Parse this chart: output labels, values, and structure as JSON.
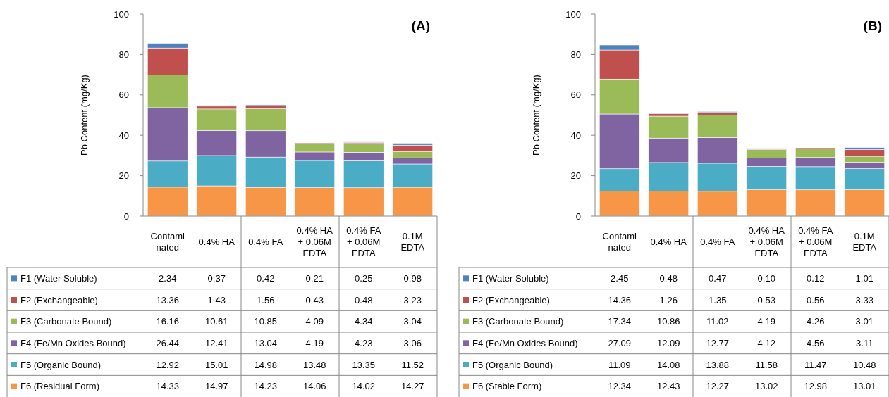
{
  "chart_data": [
    {
      "type": "bar",
      "stacked": true,
      "title": "(A)",
      "ylabel": "Pb Content (mg/Kg)",
      "categories": [
        "Contaminated",
        "0.4% HA",
        "0.4% FA",
        "0.4% HA + 0.06M EDTA",
        "0.4% FA + 0.06M EDTA",
        "0.1M EDTA"
      ],
      "ylim": [
        0,
        100
      ],
      "yticks": [
        0,
        20,
        40,
        60,
        80,
        100
      ],
      "grid": false,
      "legend": "bottom left",
      "series": [
        {
          "name": "F6 (Residual Form)",
          "color": "#f79646",
          "values": [
            14.33,
            14.97,
            14.23,
            14.06,
            14.02,
            14.27
          ],
          "value_labels": [
            "14.33",
            "14.97",
            "14.23",
            "14.06",
            "14.02",
            "14.27"
          ]
        },
        {
          "name": "F5 (Organic Bound)",
          "color": "#4bacc6",
          "values": [
            12.92,
            15.01,
            14.98,
            13.48,
            13.35,
            11.52
          ],
          "value_labels": [
            "12.92",
            "15.01",
            "14.98",
            "13.48",
            "13.35",
            "11.52"
          ]
        },
        {
          "name": "F4 (Fe/Mn Oxides Bound)",
          "color": "#8064a2",
          "values": [
            26.44,
            12.41,
            13.04,
            4.19,
            4.23,
            3.06
          ],
          "value_labels": [
            "26.44",
            "12.41",
            "13.04",
            "4.19",
            "4.23",
            "3.06"
          ]
        },
        {
          "name": "F3 (Carbonate Bound)",
          "color": "#9bbb59",
          "values": [
            16.16,
            10.61,
            10.85,
            4.09,
            4.34,
            3.04
          ],
          "value_labels": [
            "16.16",
            "10.61",
            "10.85",
            "4.09",
            "4.34",
            "3.04"
          ]
        },
        {
          "name": "F2 (Exchangeable)",
          "color": "#c0504d",
          "values": [
            13.36,
            1.43,
            1.56,
            0.43,
            0.48,
            3.23
          ],
          "value_labels": [
            "13.36",
            "1.43",
            "1.56",
            "0.43",
            "0.48",
            "3.23"
          ]
        },
        {
          "name": "F1 (Water Soluble)",
          "color": "#4f81bd",
          "values": [
            2.34,
            0.37,
            0.42,
            0.21,
            0.25,
            0.98
          ],
          "value_labels": [
            "2.34",
            "0.37",
            "0.42",
            "0.21",
            "0.25",
            "0.98"
          ]
        }
      ]
    },
    {
      "type": "bar",
      "stacked": true,
      "title": "(B)",
      "ylabel": "Pb Content (mg/Kg)",
      "categories": [
        "Contaminated",
        "0.4% HA",
        "0.4% FA",
        "0.4% HA + 0.06M EDTA",
        "0.4% FA + 0.06M EDTA",
        "0.1M EDTA"
      ],
      "ylim": [
        0,
        100
      ],
      "yticks": [
        0,
        20,
        40,
        60,
        80,
        100
      ],
      "grid": false,
      "legend": "bottom left",
      "series": [
        {
          "name": "F6 (Stable Form)",
          "color": "#f79646",
          "values": [
            12.34,
            12.43,
            12.27,
            13.02,
            12.98,
            13.01
          ],
          "value_labels": [
            "12.34",
            "12.43",
            "12.27",
            "13.02",
            "12.98",
            "13.01"
          ]
        },
        {
          "name": "F5 (Organic Bound)",
          "color": "#4bacc6",
          "values": [
            11.09,
            14.08,
            13.88,
            11.58,
            11.47,
            10.48
          ],
          "value_labels": [
            "11.09",
            "14.08",
            "13.88",
            "11.58",
            "11.47",
            "10.48"
          ]
        },
        {
          "name": "F4 (Fe/Mn Oxides Bound)",
          "color": "#8064a2",
          "values": [
            27.09,
            12.09,
            12.77,
            4.12,
            4.56,
            3.11
          ],
          "value_labels": [
            "27.09",
            "12.09",
            "12.77",
            "4.12",
            "4.56",
            "3.11"
          ]
        },
        {
          "name": "F3 (Carbonate Bound)",
          "color": "#9bbb59",
          "values": [
            17.34,
            10.86,
            11.02,
            4.19,
            4.26,
            3.01
          ],
          "value_labels": [
            "17.34",
            "10.86",
            "11.02",
            "4.19",
            "4.26",
            "3.01"
          ]
        },
        {
          "name": "F2 (Exchangeable)",
          "color": "#c0504d",
          "values": [
            14.36,
            1.26,
            1.35,
            0.53,
            0.56,
            3.33
          ],
          "value_labels": [
            "14.36",
            "1.26",
            "1.35",
            "0.53",
            "0.56",
            "3.33"
          ]
        },
        {
          "name": "F1 (Water Soluble)",
          "color": "#4f81bd",
          "values": [
            2.45,
            0.48,
            0.47,
            0.1,
            0.12,
            1.01
          ],
          "value_labels": [
            "2.45",
            "0.48",
            "0.47",
            "0.10",
            "0.12",
            "1.01"
          ]
        }
      ]
    }
  ]
}
